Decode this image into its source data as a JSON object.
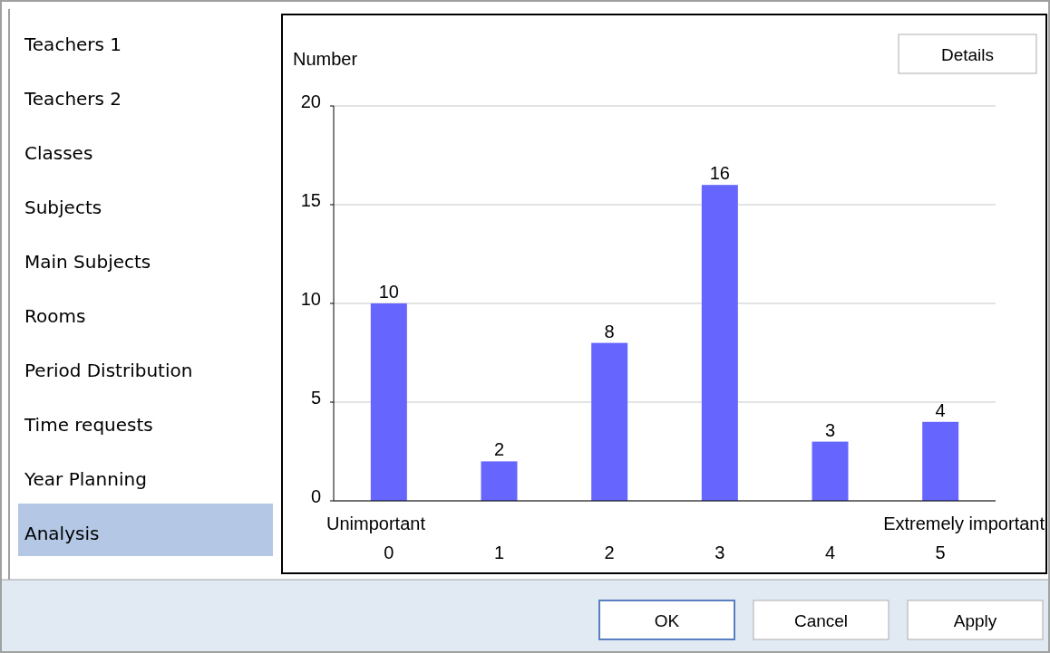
{
  "chart_data": {
    "type": "bar",
    "ylabel": "Number",
    "categories": [
      "0",
      "1",
      "2",
      "3",
      "4",
      "5"
    ],
    "values": [
      10,
      2,
      8,
      16,
      3,
      4
    ],
    "color": "#6666ff",
    "ylim": [
      0,
      20
    ],
    "yticks": [
      0,
      5,
      10,
      15,
      20
    ],
    "grid": "y",
    "data_labels": true,
    "annotations": [
      "Teachers 1",
      "Teachers 2",
      "Classes",
      "Subjects",
      "Main Subjects",
      "Rooms",
      "Period Distribution",
      "Time requests",
      "Year Planning",
      "Analysis",
      "Details",
      "OK",
      "Cancel",
      "Apply",
      "Unimportant",
      "Extremely important"
    ]
  }
}
